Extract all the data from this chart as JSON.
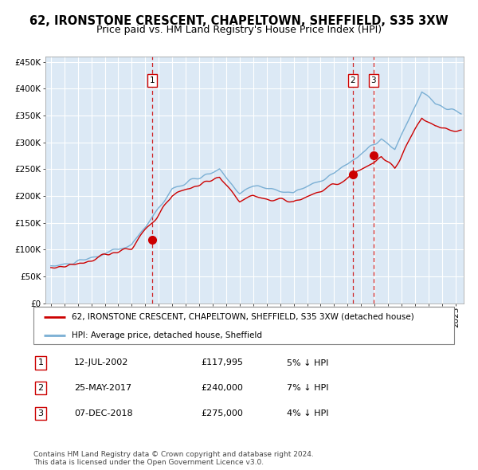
{
  "title": "62, IRONSTONE CRESCENT, CHAPELTOWN, SHEFFIELD, S35 3XW",
  "subtitle": "Price paid vs. HM Land Registry's House Price Index (HPI)",
  "ylim": [
    0,
    460000
  ],
  "yticks": [
    0,
    50000,
    100000,
    150000,
    200000,
    250000,
    300000,
    350000,
    400000,
    450000
  ],
  "xlim_start": 1994.6,
  "xlim_end": 2025.6,
  "plot_bg_color": "#dce9f5",
  "grid_color": "#ffffff",
  "hpi_line_color": "#7aafd4",
  "price_line_color": "#cc0000",
  "marker_color": "#cc0000",
  "vline_color": "#cc0000",
  "sale_points": [
    {
      "date_num": 2002.53,
      "price": 117995,
      "label": "1"
    },
    {
      "date_num": 2017.38,
      "price": 240000,
      "label": "2"
    },
    {
      "date_num": 2018.92,
      "price": 275000,
      "label": "3"
    }
  ],
  "legend_entries": [
    {
      "label": "62, IRONSTONE CRESCENT, CHAPELTOWN, SHEFFIELD, S35 3XW (detached house)",
      "color": "#cc0000"
    },
    {
      "label": "HPI: Average price, detached house, Sheffield",
      "color": "#7aafd4"
    }
  ],
  "table_rows": [
    {
      "num": "1",
      "date": "12-JUL-2002",
      "price": "£117,995",
      "hpi": "5% ↓ HPI"
    },
    {
      "num": "2",
      "date": "25-MAY-2017",
      "price": "£240,000",
      "hpi": "7% ↓ HPI"
    },
    {
      "num": "3",
      "date": "07-DEC-2018",
      "price": "£275,000",
      "hpi": "4% ↓ HPI"
    }
  ],
  "footer": "Contains HM Land Registry data © Crown copyright and database right 2024.\nThis data is licensed under the Open Government Licence v3.0.",
  "title_fontsize": 10.5,
  "subtitle_fontsize": 9,
  "tick_fontsize": 7.5,
  "legend_fontsize": 7.5,
  "table_fontsize": 8,
  "footer_fontsize": 6.5
}
